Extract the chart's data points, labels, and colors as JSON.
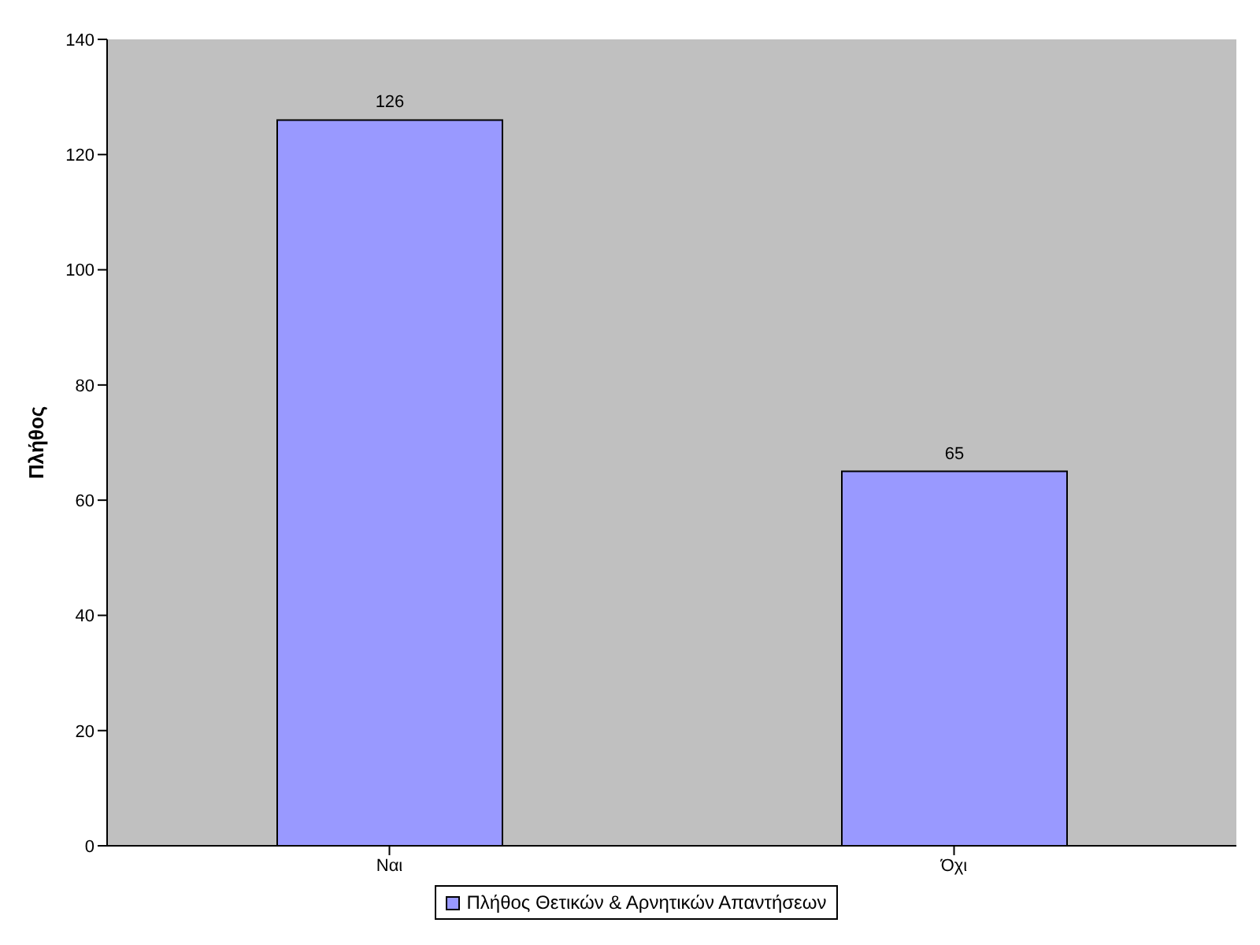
{
  "chart_data": {
    "type": "bar",
    "ylabel": "Πλήθος",
    "categories": [
      "Ναι",
      "Όχι"
    ],
    "series": [
      {
        "name": "Πλήθος Θετικών & Αρνητικών Απαντήσεων",
        "color": "#9999ff",
        "values": [
          126,
          65
        ]
      }
    ],
    "ylim": [
      0,
      140
    ],
    "yticks": [
      0,
      20,
      40,
      60,
      80,
      100,
      120,
      140
    ],
    "data_labels": true,
    "legend": "bottom"
  }
}
